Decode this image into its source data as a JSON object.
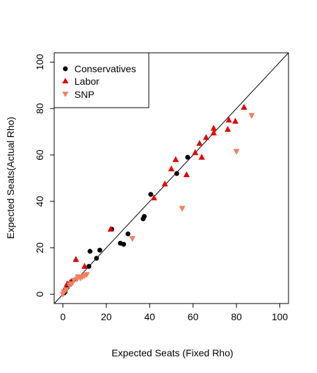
{
  "chart_data": {
    "type": "scatter",
    "xlabel": "Expected Seats (Fixed Rho)",
    "ylabel": "Expected Seats(Actual Rho)",
    "xlim": [
      -4,
      104
    ],
    "ylim": [
      -4,
      104
    ],
    "xticks": [
      "0",
      "20",
      "40",
      "60",
      "80",
      "100"
    ],
    "yticks": [
      "0",
      "20",
      "40",
      "60",
      "80",
      "100"
    ],
    "reference_line": "y = x",
    "legend_position": "top-left",
    "series": [
      {
        "name": "Conservatives",
        "marker": "circle",
        "color": "#000000",
        "points": [
          [
            0.5,
            0.5
          ],
          [
            1,
            1
          ],
          [
            2,
            3
          ],
          [
            3,
            4.5
          ],
          [
            4,
            5.5
          ],
          [
            12,
            12
          ],
          [
            12.5,
            18.5
          ],
          [
            15.5,
            15.5
          ],
          [
            17,
            19
          ],
          [
            22.5,
            28
          ],
          [
            26.5,
            22
          ],
          [
            28,
            21.5
          ],
          [
            30,
            26
          ],
          [
            37,
            32.5
          ],
          [
            37.5,
            33.5
          ],
          [
            40.5,
            43
          ],
          [
            52.5,
            52
          ],
          [
            57.5,
            59
          ]
        ]
      },
      {
        "name": "Labor",
        "marker": "triangle-up",
        "color": "#e00000",
        "points": [
          [
            1,
            2.5
          ],
          [
            2,
            4.5
          ],
          [
            3.5,
            5
          ],
          [
            6,
            15
          ],
          [
            10,
            12
          ],
          [
            22,
            28
          ],
          [
            42,
            41.5
          ],
          [
            47,
            47.5
          ],
          [
            50,
            54
          ],
          [
            52,
            58
          ],
          [
            57,
            51.5
          ],
          [
            61,
            61
          ],
          [
            63,
            65
          ],
          [
            64,
            59
          ],
          [
            66,
            67.5
          ],
          [
            69.5,
            69.5
          ],
          [
            69.5,
            71.5
          ],
          [
            76,
            71
          ],
          [
            76.5,
            75
          ],
          [
            79.5,
            74.5
          ],
          [
            83.5,
            80.5
          ]
        ]
      },
      {
        "name": "SNP",
        "marker": "triangle-down",
        "color": "#f08060",
        "points": [
          [
            0,
            0
          ],
          [
            0.5,
            1
          ],
          [
            1.5,
            2
          ],
          [
            3,
            4
          ],
          [
            4,
            4.5
          ],
          [
            5,
            6
          ],
          [
            6.5,
            6.5
          ],
          [
            7,
            7.5
          ],
          [
            8,
            7
          ],
          [
            9,
            7.5
          ],
          [
            10,
            8
          ],
          [
            11,
            8.5
          ],
          [
            32,
            24
          ],
          [
            55,
            37
          ],
          [
            80,
            61.5
          ],
          [
            87,
            77
          ]
        ]
      }
    ]
  }
}
